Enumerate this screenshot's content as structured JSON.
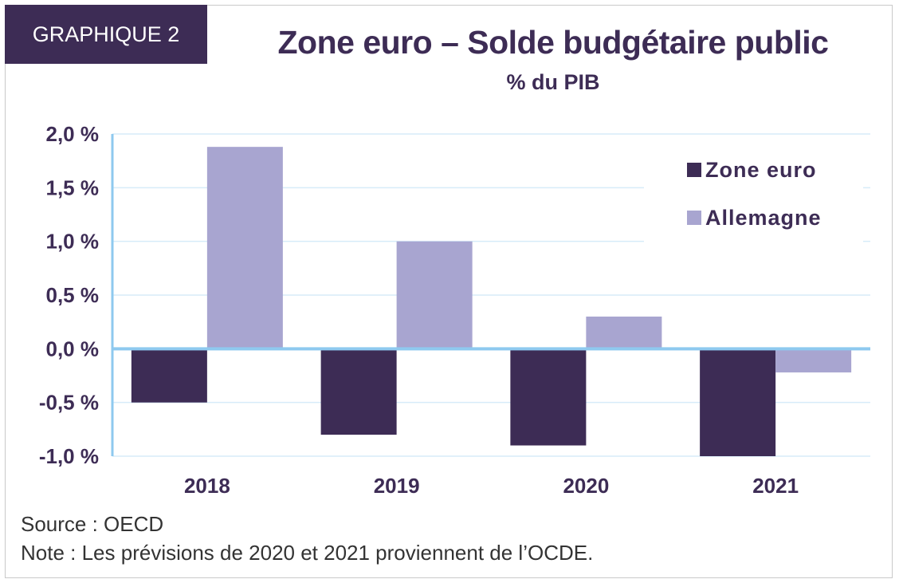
{
  "badge": "GRAPHIQUE 2",
  "title": "Zone euro – Solde budgétaire public",
  "subtitle": "% du PIB",
  "source": "Source : OECD",
  "note": "Note : Les prévisions de 2020 et 2021 proviennent de l’OCDE.",
  "colors": {
    "zone_euro": "#3d2c55",
    "allemagne": "#a8a5d0",
    "axis": "#8ec9ef",
    "grid": "#d7ecf9",
    "text": "#3d2c55"
  },
  "chart_data": {
    "type": "bar",
    "categories": [
      "2018",
      "2019",
      "2020",
      "2021"
    ],
    "series": [
      {
        "name": "Zone euro",
        "values": [
          -0.5,
          -0.8,
          -0.9,
          -1.0
        ]
      },
      {
        "name": "Allemagne",
        "values": [
          1.88,
          1.0,
          0.3,
          -0.22
        ]
      }
    ],
    "ylim": [
      -1.0,
      2.0
    ],
    "yticks": [
      2.0,
      1.5,
      1.0,
      0.5,
      0.0,
      -0.5,
      -1.0
    ],
    "ytick_labels": [
      "2,0 %",
      "1,5 %",
      "1,0 %",
      "0,5 %",
      "0,0 %",
      "-0,5 %",
      "-1,0 %"
    ],
    "grid": true,
    "legend": "top-right"
  }
}
